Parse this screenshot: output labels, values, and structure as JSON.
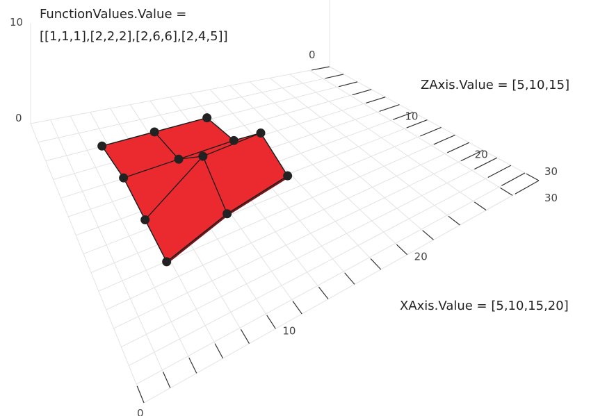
{
  "chart_data": {
    "type": "surface",
    "series": [
      {
        "x": [
          5,
          10,
          15,
          20
        ],
        "z": [
          5,
          10,
          15
        ],
        "y": [
          [
            1,
            1,
            1
          ],
          [
            2,
            2,
            2
          ],
          [
            2,
            6,
            6
          ],
          [
            2,
            4,
            5
          ]
        ],
        "color": "#ea2a2f"
      }
    ],
    "axes": {
      "x": {
        "range": [
          0,
          30
        ],
        "ticks": [
          "0",
          "10",
          "20",
          "30"
        ]
      },
      "y": {
        "range": [
          0,
          10
        ],
        "ticks": [
          "0",
          "10"
        ]
      },
      "z": {
        "range": [
          0,
          30
        ],
        "ticks": [
          "0",
          "10",
          "20",
          "30"
        ]
      }
    },
    "grid": true,
    "annotations": {
      "function_values_line1": "FunctionValues.Value =",
      "function_values_line2": "[[1,1,1],[2,2,2],[2,6,6],[2,4,5]]",
      "zaxis_value": "ZAxis.Value = [5,10,15]",
      "xaxis_value": "XAxis.Value = [5,10,15,20]"
    }
  }
}
